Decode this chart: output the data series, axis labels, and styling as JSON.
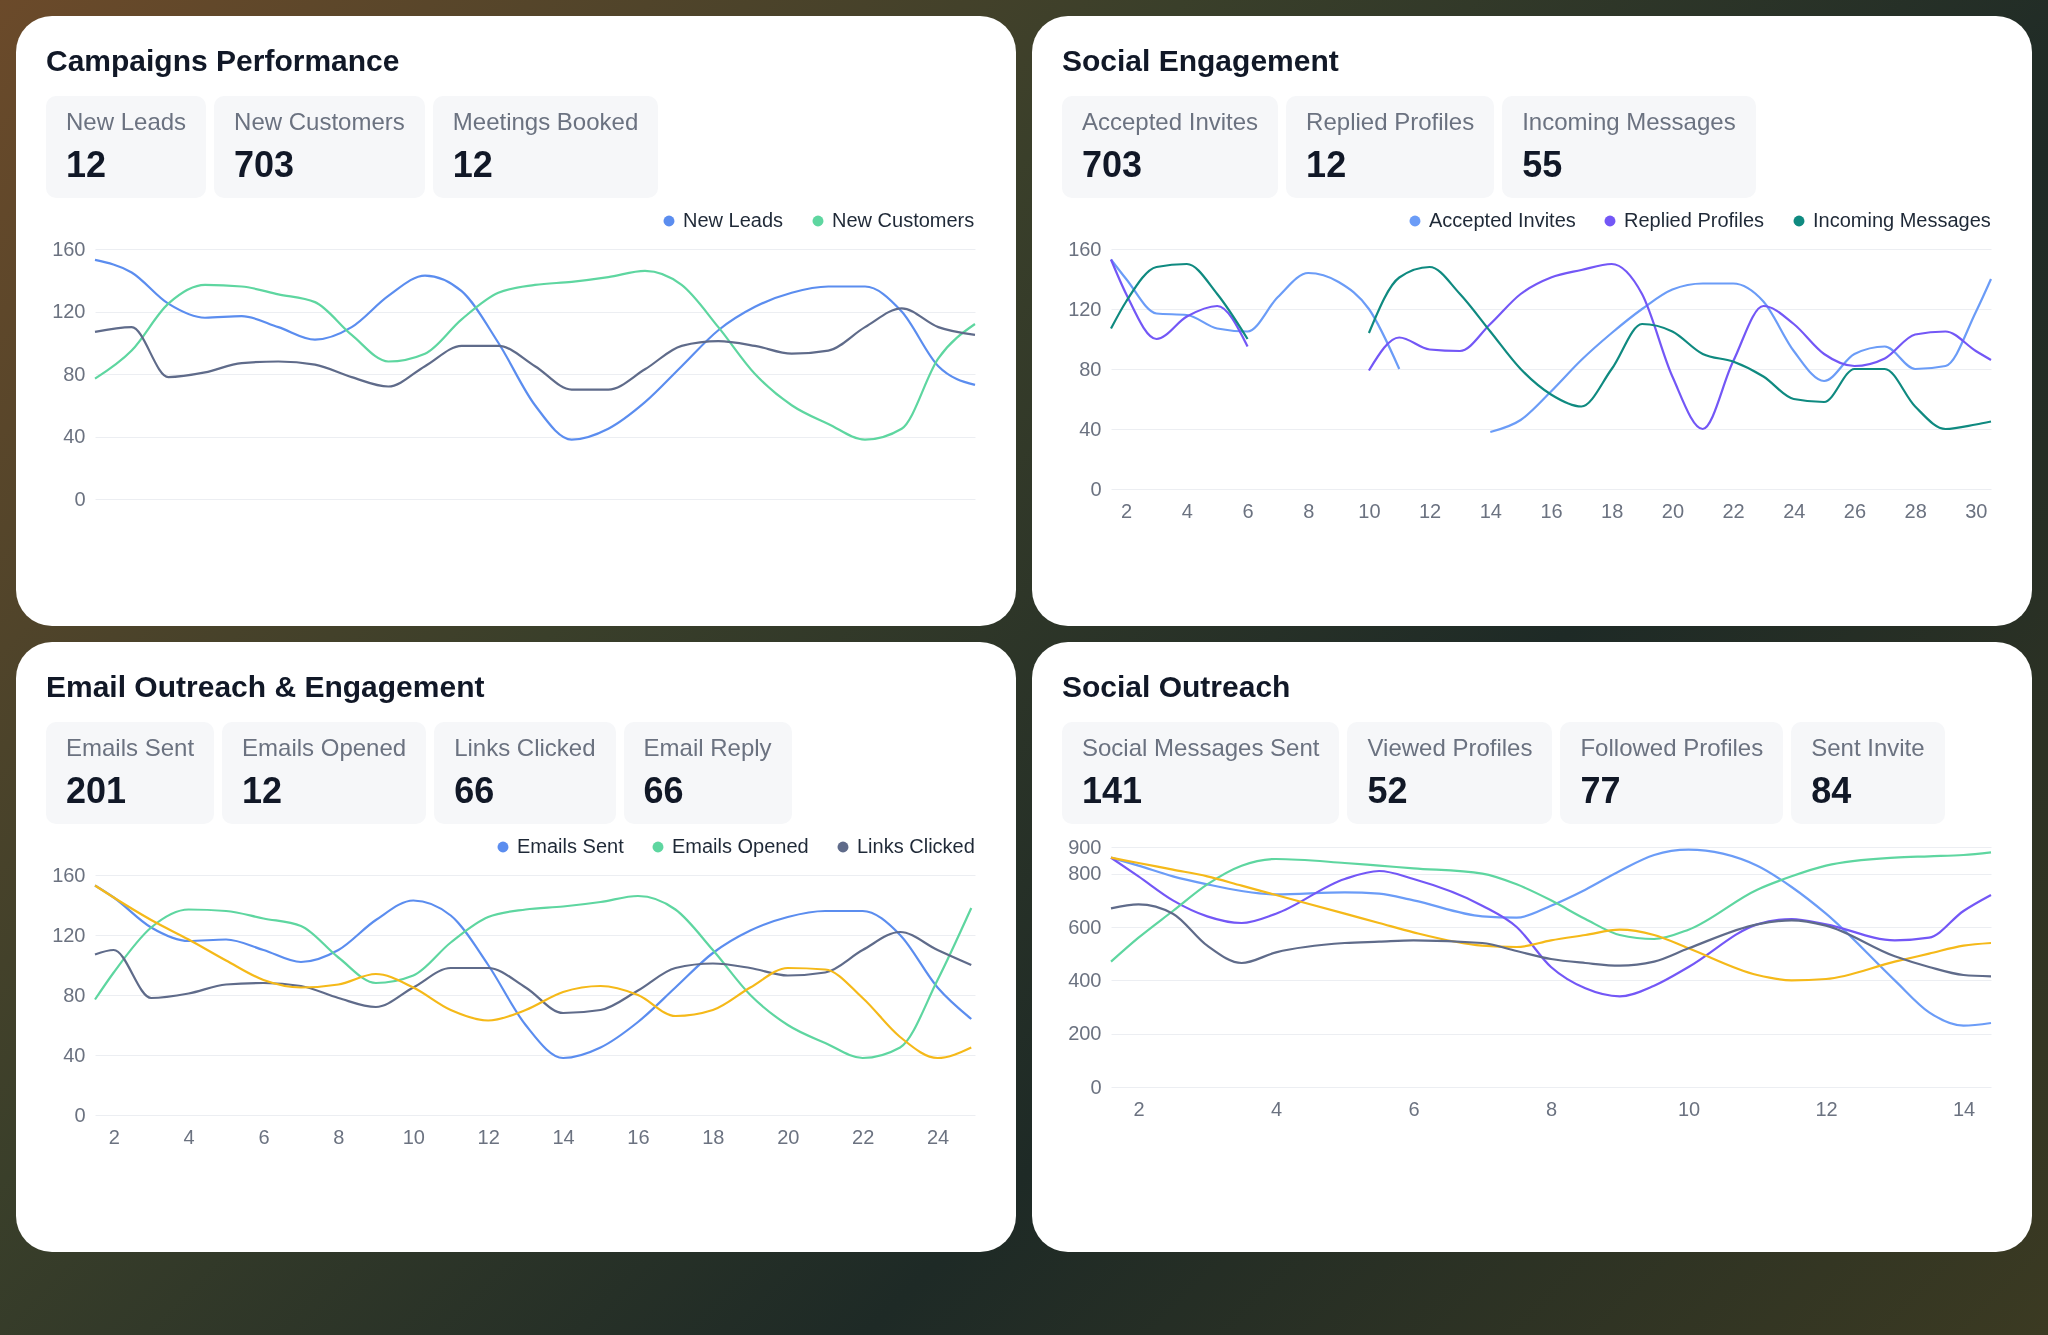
{
  "chart_data": [
    {
      "type": "line",
      "title": "Campaigns Performance",
      "annotations": [
        "New Leads",
        "12",
        "New Customers",
        "703",
        "Meetings Booked",
        "12"
      ],
      "categories": [
        null,
        null,
        null,
        null,
        null,
        null,
        null,
        null,
        null,
        null,
        null,
        null,
        null,
        null,
        null,
        null,
        null,
        null,
        null,
        null,
        null,
        null,
        null,
        null,
        null
      ],
      "series": [
        {
          "name": "New Leads",
          "color": "#5b8def",
          "values": [
            153,
            145,
            125,
            116,
            117,
            110,
            102,
            110,
            130,
            143,
            133,
            100,
            60,
            38,
            45,
            62,
            85,
            108,
            123,
            132,
            136,
            136,
            120,
            85,
            73
          ]
        },
        {
          "name": "New Customers",
          "color": "#5ed6a0",
          "values": [
            77,
            95,
            125,
            137,
            136,
            131,
            126,
            105,
            88,
            93,
            115,
            132,
            137,
            139,
            142,
            146,
            137,
            110,
            80,
            60,
            48,
            38,
            45,
            90,
            112
          ]
        },
        {
          "color": "#5f6b8a",
          "values": [
            107,
            110,
            78,
            81,
            87,
            88,
            86,
            78,
            72,
            85,
            98,
            98,
            85,
            70,
            70,
            83,
            98,
            101,
            98,
            93,
            95,
            110,
            122,
            110,
            105
          ]
        }
      ],
      "ylim": [
        0,
        160
      ],
      "yticks": [
        0,
        40,
        80,
        120,
        160
      ],
      "grid": "y",
      "legend": "top right",
      "tick_labels": "y"
    },
    {
      "type": "line",
      "title": "Social Engagement",
      "annotations": [
        "Accepted Invites",
        "703",
        "Replied Profiles",
        "12",
        "Incoming Messages",
        "55"
      ],
      "x": [
        1.5,
        2,
        3,
        4,
        5,
        6,
        7,
        8,
        9,
        10,
        11,
        12,
        13,
        14,
        15,
        16,
        17,
        18,
        19,
        20,
        21,
        22,
        23,
        24,
        25,
        26,
        27,
        28,
        29,
        30,
        30.5
      ],
      "series": [
        {
          "name": "Accepted Invites",
          "color": "#6b9cf7",
          "values": [
            153,
            140,
            117,
            116,
            107,
            105,
            128,
            144,
            138,
            120,
            80,
            null,
            null,
            38,
            46,
            65,
            86,
            104,
            120,
            133,
            137,
            137,
            125,
            92,
            72,
            90,
            95,
            80,
            82,
            118,
            140
          ]
        },
        {
          "name": "Replied Profiles",
          "color": "#7357f6",
          "values": [
            153,
            130,
            100,
            115,
            122,
            95,
            null,
            null,
            null,
            79,
            101,
            93,
            92,
            110,
            130,
            141,
            146,
            150,
            130,
            75,
            40,
            85,
            122,
            110,
            90,
            82,
            87,
            103,
            105,
            92,
            86
          ]
        },
        {
          "name": "Incoming Messages",
          "color": "#0f8a80",
          "values": [
            107,
            125,
            148,
            150,
            130,
            100,
            null,
            null,
            null,
            104,
            141,
            148,
            130,
            105,
            80,
            63,
            55,
            80,
            110,
            105,
            90,
            85,
            75,
            60,
            58,
            80,
            80,
            55,
            40,
            43,
            45
          ]
        }
      ],
      "xlim": [
        1.5,
        30.5
      ],
      "xticks": [
        2,
        4,
        6,
        8,
        10,
        12,
        14,
        16,
        18,
        20,
        22,
        24,
        26,
        28,
        30
      ],
      "ylim": [
        0,
        160
      ],
      "yticks": [
        0,
        40,
        80,
        120,
        160
      ],
      "grid": "y",
      "legend": "top right"
    },
    {
      "type": "line",
      "title": "Email Outreach & Engagement",
      "annotations": [
        "Emails Sent",
        "201",
        "Emails Opened",
        "12",
        "Links Clicked",
        "66",
        "Email Reply",
        "66"
      ],
      "x": [
        1.5,
        2,
        3,
        4,
        5,
        6,
        7,
        8,
        9,
        10,
        11,
        12,
        13,
        14,
        15,
        16,
        17,
        18,
        19,
        20,
        21,
        22,
        23,
        24,
        24.9
      ],
      "series": [
        {
          "name": "Emails Sent",
          "color": "#5b8def",
          "values": [
            153,
            145,
            125,
            116,
            117,
            110,
            102,
            110,
            130,
            143,
            133,
            100,
            60,
            38,
            45,
            62,
            85,
            108,
            123,
            132,
            136,
            136,
            120,
            85,
            64
          ]
        },
        {
          "name": "Emails Opened",
          "color": "#5ed6a0",
          "values": [
            77,
            95,
            125,
            137,
            136,
            131,
            126,
            105,
            88,
            93,
            115,
            132,
            137,
            139,
            142,
            146,
            137,
            110,
            80,
            60,
            48,
            38,
            45,
            90,
            138
          ]
        },
        {
          "name": "Links Clicked",
          "color": "#5f6b8a",
          "values": [
            107,
            110,
            78,
            81,
            87,
            88,
            86,
            78,
            72,
            85,
            98,
            98,
            85,
            68,
            70,
            83,
            98,
            101,
            98,
            93,
            95,
            110,
            122,
            110,
            100
          ]
        },
        {
          "color": "#f5b919",
          "values": [
            153,
            145,
            130,
            117,
            103,
            90,
            85,
            87,
            94,
            85,
            70,
            63,
            70,
            82,
            86,
            80,
            66,
            70,
            85,
            98,
            97,
            78,
            52,
            38,
            45
          ]
        }
      ],
      "xlim": [
        1.5,
        25
      ],
      "xticks": [
        2,
        4,
        6,
        8,
        10,
        12,
        14,
        16,
        18,
        20,
        22,
        24
      ],
      "ylim": [
        0,
        160
      ],
      "yticks": [
        0,
        40,
        80,
        120,
        160
      ],
      "grid": "y",
      "legend": "top right"
    },
    {
      "type": "line",
      "title": "Social Outreach",
      "annotations": [
        "Social Messages Sent",
        "141",
        "Viewed Profiles",
        "52",
        "Followed Profiles",
        "77",
        "Sent Invite",
        "84"
      ],
      "x": [
        1.6,
        2,
        2.5,
        3,
        3.5,
        4,
        5,
        5.5,
        6,
        7,
        7.5,
        8,
        8.5,
        9,
        9.5,
        10,
        11,
        11.5,
        12,
        13,
        13.5,
        14,
        14.4
      ],
      "series": [
        {
          "color": "#6b9cf7",
          "values": [
            860,
            830,
            790,
            760,
            735,
            722,
            730,
            725,
            700,
            640,
            635,
            680,
            740,
            810,
            870,
            890,
            830,
            750,
            650,
            400,
            280,
            230,
            240
          ]
        },
        {
          "color": "#7357f6",
          "values": [
            860,
            790,
            700,
            640,
            615,
            650,
            780,
            810,
            780,
            680,
            600,
            450,
            370,
            340,
            380,
            450,
            610,
            630,
            610,
            550,
            560,
            660,
            720
          ]
        },
        {
          "color": "#5ed6a0",
          "values": [
            470,
            560,
            660,
            760,
            830,
            855,
            840,
            830,
            820,
            800,
            760,
            700,
            630,
            570,
            555,
            590,
            740,
            790,
            830,
            860,
            865,
            870,
            880
          ]
        },
        {
          "color": "#f5b919",
          "values": [
            860,
            840,
            815,
            790,
            755,
            720,
            650,
            615,
            580,
            530,
            525,
            550,
            570,
            590,
            570,
            520,
            420,
            400,
            405,
            470,
            500,
            530,
            540
          ]
        },
        {
          "color": "#5f6b8a",
          "values": [
            670,
            685,
            650,
            530,
            465,
            505,
            540,
            545,
            550,
            540,
            510,
            480,
            465,
            455,
            470,
            520,
            610,
            625,
            605,
            490,
            450,
            420,
            415
          ]
        }
      ],
      "xlim": [
        1.6,
        14.4
      ],
      "xticks": [
        2,
        4,
        6,
        8,
        10,
        12,
        14
      ],
      "ylim": [
        0,
        900
      ],
      "yticks": [
        0,
        200,
        400,
        600,
        800,
        900
      ],
      "grid": "y"
    }
  ]
}
